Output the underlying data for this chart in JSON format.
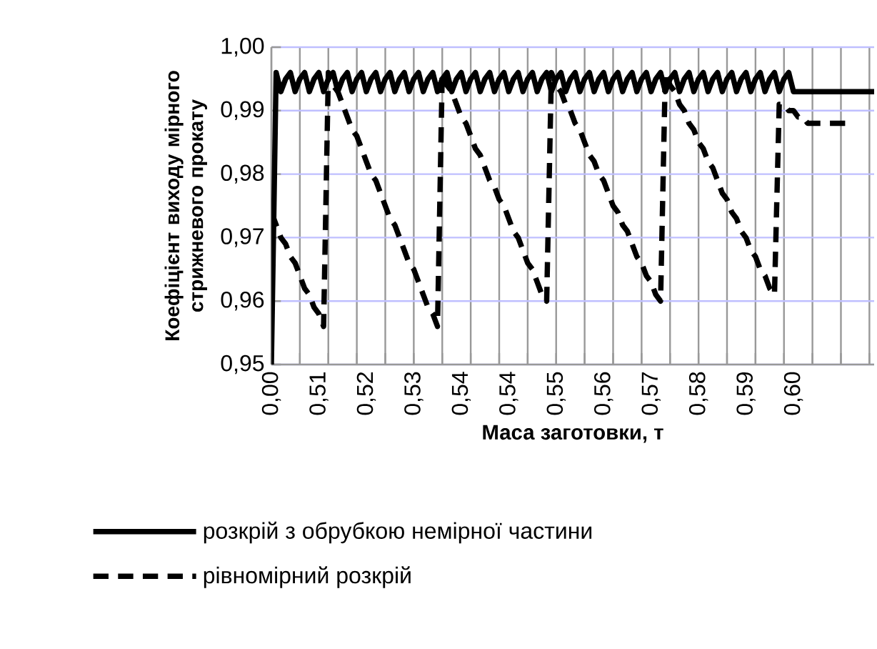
{
  "chart_data": {
    "type": "line",
    "xlabel": "Маса заготовки, т",
    "ylabel": "Коефіцієнт виходу мірного стрижневого прокату",
    "categories": [
      "0,00",
      null,
      null,
      null,
      null,
      null,
      null,
      null,
      null,
      null,
      "0,51",
      null,
      null,
      null,
      null,
      null,
      null,
      null,
      null,
      null,
      "0,52",
      null,
      null,
      null,
      null,
      null,
      null,
      null,
      null,
      null,
      "0,53",
      null,
      null,
      null,
      null,
      null,
      null,
      null,
      null,
      null,
      "0,54",
      null,
      null,
      null,
      null,
      null,
      null,
      null,
      null,
      null,
      "0,54",
      null,
      null,
      null,
      null,
      null,
      null,
      null,
      null,
      null,
      "0,55",
      null,
      null,
      null,
      null,
      null,
      null,
      null,
      null,
      null,
      "0,56",
      null,
      null,
      null,
      null,
      null,
      null,
      null,
      null,
      null,
      "0,57",
      null,
      null,
      null,
      null,
      null,
      null,
      null,
      null,
      null,
      "0,58",
      null,
      null,
      null,
      null,
      null,
      null,
      null,
      null,
      null,
      "0,59",
      null,
      null,
      null,
      null,
      null,
      null,
      null,
      null,
      null,
      "0,60",
      null,
      null,
      null,
      null,
      null,
      null,
      null,
      null,
      null,
      null,
      null,
      null,
      null,
      null,
      null,
      null,
      null
    ],
    "series": [
      {
        "name": "розкрій з обрубкою немірної частини",
        "color": "#000000",
        "line_style": "solid",
        "values": [
          0.95,
          0.996,
          0.993,
          0.995,
          0.996,
          0.993,
          0.995,
          0.996,
          0.993,
          0.995,
          0.996,
          0.993,
          0.995,
          0.996,
          0.993,
          0.995,
          0.996,
          0.993,
          0.995,
          0.996,
          0.993,
          0.995,
          0.996,
          0.993,
          0.995,
          0.996,
          0.993,
          0.995,
          0.996,
          0.993,
          0.995,
          0.996,
          0.993,
          0.995,
          0.996,
          0.993,
          0.995,
          0.996,
          0.993,
          0.995,
          0.996,
          0.993,
          0.995,
          0.996,
          0.993,
          0.995,
          0.996,
          0.993,
          0.995,
          0.996,
          0.993,
          0.995,
          0.996,
          0.993,
          0.995,
          0.996,
          0.993,
          0.995,
          0.996,
          0.993,
          0.995,
          0.996,
          0.993,
          0.995,
          0.996,
          0.993,
          0.995,
          0.996,
          0.993,
          0.995,
          0.996,
          0.993,
          0.995,
          0.996,
          0.993,
          0.995,
          0.996,
          0.993,
          0.995,
          0.996,
          0.993,
          0.995,
          0.996,
          0.993,
          0.995,
          0.996,
          0.993,
          0.995,
          0.996,
          0.993,
          0.995,
          0.996,
          0.993,
          0.995,
          0.996,
          0.993,
          0.995,
          0.996,
          0.993,
          0.995,
          0.996,
          0.993,
          0.995,
          0.996,
          0.993,
          0.995,
          0.996,
          0.993,
          0.995,
          0.996,
          0.993,
          0.993,
          0.993,
          0.993,
          0.993,
          0.993,
          0.993,
          0.993,
          0.993,
          0.993,
          0.993,
          0.993,
          0.993,
          0.993,
          0.993,
          0.993,
          0.993,
          0.993
        ]
      },
      {
        "name": "рівномірний розкрій",
        "color": "#000000",
        "line_style": "dashed",
        "values": [
          0.974,
          0.972,
          0.97,
          0.969,
          0.967,
          0.966,
          0.964,
          0.962,
          0.961,
          0.959,
          0.958,
          0.956,
          0.996,
          0.994,
          0.993,
          0.991,
          0.989,
          0.987,
          0.986,
          0.984,
          0.982,
          0.98,
          0.979,
          0.977,
          0.975,
          0.973,
          0.972,
          0.97,
          0.968,
          0.966,
          0.965,
          0.963,
          0.961,
          0.959,
          0.958,
          0.956,
          0.996,
          0.994,
          0.993,
          0.991,
          0.989,
          0.988,
          0.986,
          0.984,
          0.983,
          0.981,
          0.979,
          0.978,
          0.976,
          0.975,
          0.973,
          0.971,
          0.97,
          0.968,
          0.966,
          0.965,
          0.963,
          0.961,
          0.96,
          0.996,
          0.994,
          0.993,
          0.991,
          0.99,
          0.988,
          0.987,
          0.985,
          0.983,
          0.982,
          0.98,
          0.979,
          0.977,
          0.975,
          0.974,
          0.972,
          0.971,
          0.969,
          0.967,
          0.966,
          0.964,
          0.963,
          0.961,
          0.96,
          0.996,
          0.994,
          0.993,
          0.991,
          0.99,
          0.988,
          0.987,
          0.985,
          0.984,
          0.982,
          0.981,
          0.979,
          0.977,
          0.976,
          0.974,
          0.973,
          0.971,
          0.97,
          0.968,
          0.967,
          0.965,
          0.964,
          0.962,
          0.961,
          0.991,
          0.991,
          0.99,
          0.99,
          0.989,
          0.989,
          0.988,
          0.988,
          0.988,
          0.988,
          0.988,
          0.988,
          0.988,
          0.988,
          0.988,
          0.988,
          null,
          null,
          null,
          null,
          null
        ]
      }
    ],
    "ylim": [
      0.95,
      1.0
    ],
    "yticks": [
      {
        "value": 0.95,
        "label": "0,95"
      },
      {
        "value": 0.96,
        "label": "0,96"
      },
      {
        "value": 0.97,
        "label": "0,97"
      },
      {
        "value": 0.98,
        "label": "0,98"
      },
      {
        "value": 0.99,
        "label": "0,99"
      },
      {
        "value": 1.0,
        "label": "1,00"
      }
    ],
    "grid": true,
    "legend": "bottom"
  }
}
